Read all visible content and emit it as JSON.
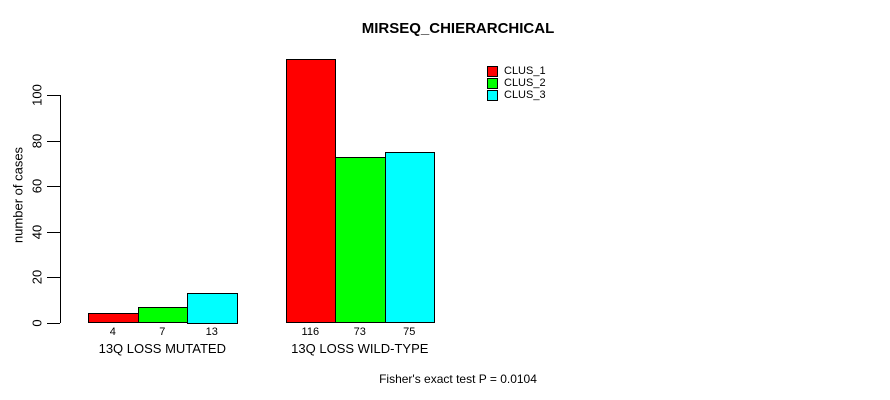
{
  "chart_data": {
    "type": "bar",
    "title": "MIRSEQ_CHIERARCHICAL",
    "ylabel": "number of cases",
    "xlabel": "",
    "footnote": "Fisher's exact test P = 0.0104",
    "categories": [
      "13Q LOSS MUTATED",
      "13Q LOSS WILD-TYPE"
    ],
    "series": [
      {
        "name": "CLUS_1",
        "color": "#FF0000",
        "values": [
          4,
          116
        ]
      },
      {
        "name": "CLUS_2",
        "color": "#00FF00",
        "values": [
          7,
          73
        ]
      },
      {
        "name": "CLUS_3",
        "color": "#00FFFF",
        "values": [
          13,
          75
        ]
      }
    ],
    "bar_value_labels": [
      [
        "4",
        "7",
        "13"
      ],
      [
        "116",
        "73",
        "75"
      ]
    ],
    "yticks": [
      "0",
      "20",
      "40",
      "60",
      "80",
      "100"
    ],
    "ylim": [
      0,
      116
    ],
    "grid": false,
    "legend_position": "top-right-inside",
    "axis_color": "#000000",
    "text_color": "#000000",
    "background_color": "#FFFFFF"
  }
}
